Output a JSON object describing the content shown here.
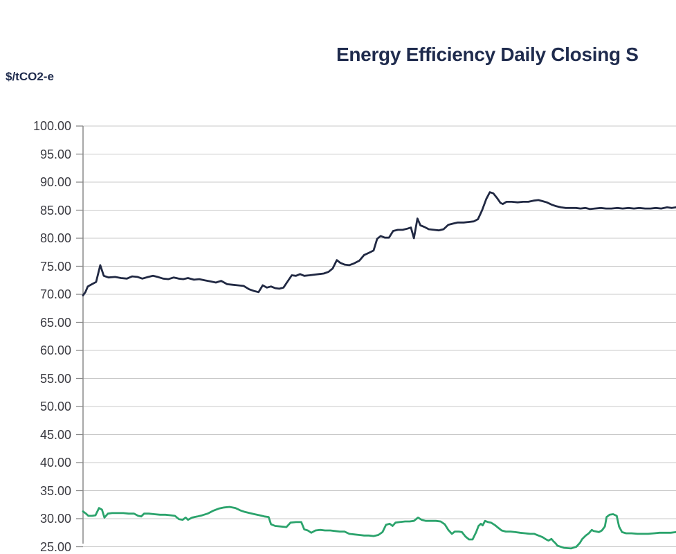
{
  "chart": {
    "title": "Energy Efficiency Daily Closing S",
    "title_color": "#1f2b4d",
    "unit_label": "$/tCO2-e"
  },
  "chart_data": {
    "type": "line",
    "title": "Energy Efficiency Daily Closing S",
    "title_note": "title truncated at right edge of image",
    "ylabel": "$/tCO2-e",
    "ylim": [
      25,
      100
    ],
    "y_tick_step": 5,
    "y_tick_labels": [
      "100.00",
      "95.00",
      "90.00",
      "85.00",
      "80.00",
      "75.00",
      "70.00",
      "65.00",
      "60.00",
      "55.00",
      "50.00",
      "45.00",
      "40.00",
      "35.00",
      "30.00",
      "25.00"
    ],
    "grid": true,
    "x_axis_labels_visible": false,
    "legend_visible": false,
    "colors": {
      "gridline": "#c8c8c8",
      "axis": "#8a8a8a",
      "navy_series": "#212943",
      "green_series": "#2ba36c"
    },
    "series": [
      {
        "name": "navy-series",
        "color": "#212943",
        "points": [
          [
            0.0,
            69.8
          ],
          [
            0.004,
            70.4
          ],
          [
            0.008,
            71.4
          ],
          [
            0.015,
            71.8
          ],
          [
            0.022,
            72.2
          ],
          [
            0.029,
            75.2
          ],
          [
            0.035,
            73.3
          ],
          [
            0.043,
            73.0
          ],
          [
            0.054,
            73.1
          ],
          [
            0.064,
            72.9
          ],
          [
            0.074,
            72.8
          ],
          [
            0.083,
            73.2
          ],
          [
            0.092,
            73.1
          ],
          [
            0.1,
            72.8
          ],
          [
            0.11,
            73.1
          ],
          [
            0.118,
            73.3
          ],
          [
            0.126,
            73.1
          ],
          [
            0.135,
            72.8
          ],
          [
            0.144,
            72.7
          ],
          [
            0.153,
            73.0
          ],
          [
            0.161,
            72.8
          ],
          [
            0.169,
            72.7
          ],
          [
            0.177,
            72.9
          ],
          [
            0.187,
            72.6
          ],
          [
            0.196,
            72.7
          ],
          [
            0.205,
            72.5
          ],
          [
            0.215,
            72.3
          ],
          [
            0.224,
            72.1
          ],
          [
            0.233,
            72.4
          ],
          [
            0.243,
            71.8
          ],
          [
            0.252,
            71.7
          ],
          [
            0.261,
            71.6
          ],
          [
            0.271,
            71.5
          ],
          [
            0.28,
            70.9
          ],
          [
            0.288,
            70.6
          ],
          [
            0.296,
            70.4
          ],
          [
            0.303,
            71.6
          ],
          [
            0.31,
            71.2
          ],
          [
            0.317,
            71.4
          ],
          [
            0.324,
            71.1
          ],
          [
            0.331,
            71.0
          ],
          [
            0.338,
            71.2
          ],
          [
            0.345,
            72.3
          ],
          [
            0.352,
            73.4
          ],
          [
            0.359,
            73.3
          ],
          [
            0.366,
            73.6
          ],
          [
            0.373,
            73.3
          ],
          [
            0.382,
            73.4
          ],
          [
            0.39,
            73.5
          ],
          [
            0.398,
            73.6
          ],
          [
            0.406,
            73.7
          ],
          [
            0.414,
            74.0
          ],
          [
            0.421,
            74.6
          ],
          [
            0.428,
            76.1
          ],
          [
            0.434,
            75.6
          ],
          [
            0.441,
            75.3
          ],
          [
            0.449,
            75.2
          ],
          [
            0.457,
            75.5
          ],
          [
            0.466,
            76.0
          ],
          [
            0.474,
            77.0
          ],
          [
            0.482,
            77.4
          ],
          [
            0.49,
            77.8
          ],
          [
            0.496,
            79.9
          ],
          [
            0.502,
            80.4
          ],
          [
            0.509,
            80.1
          ],
          [
            0.516,
            80.1
          ],
          [
            0.523,
            81.3
          ],
          [
            0.531,
            81.5
          ],
          [
            0.539,
            81.5
          ],
          [
            0.547,
            81.7
          ],
          [
            0.553,
            81.9
          ],
          [
            0.558,
            80.0
          ],
          [
            0.564,
            83.5
          ],
          [
            0.569,
            82.3
          ],
          [
            0.576,
            82.0
          ],
          [
            0.583,
            81.6
          ],
          [
            0.592,
            81.5
          ],
          [
            0.6,
            81.4
          ],
          [
            0.608,
            81.6
          ],
          [
            0.616,
            82.4
          ],
          [
            0.624,
            82.6
          ],
          [
            0.632,
            82.8
          ],
          [
            0.642,
            82.8
          ],
          [
            0.651,
            82.9
          ],
          [
            0.659,
            83.0
          ],
          [
            0.666,
            83.4
          ],
          [
            0.673,
            85.0
          ],
          [
            0.68,
            87.0
          ],
          [
            0.686,
            88.2
          ],
          [
            0.692,
            88.0
          ],
          [
            0.698,
            87.2
          ],
          [
            0.704,
            86.3
          ],
          [
            0.708,
            86.1
          ],
          [
            0.714,
            86.5
          ],
          [
            0.723,
            86.5
          ],
          [
            0.733,
            86.4
          ],
          [
            0.742,
            86.5
          ],
          [
            0.751,
            86.5
          ],
          [
            0.76,
            86.7
          ],
          [
            0.768,
            86.8
          ],
          [
            0.775,
            86.6
          ],
          [
            0.782,
            86.4
          ],
          [
            0.79,
            86.0
          ],
          [
            0.798,
            85.7
          ],
          [
            0.806,
            85.5
          ],
          [
            0.814,
            85.4
          ],
          [
            0.823,
            85.4
          ],
          [
            0.831,
            85.4
          ],
          [
            0.839,
            85.3
          ],
          [
            0.847,
            85.4
          ],
          [
            0.855,
            85.2
          ],
          [
            0.863,
            85.3
          ],
          [
            0.873,
            85.4
          ],
          [
            0.882,
            85.3
          ],
          [
            0.891,
            85.3
          ],
          [
            0.901,
            85.4
          ],
          [
            0.91,
            85.3
          ],
          [
            0.92,
            85.4
          ],
          [
            0.929,
            85.3
          ],
          [
            0.938,
            85.4
          ],
          [
            0.948,
            85.3
          ],
          [
            0.957,
            85.3
          ],
          [
            0.966,
            85.4
          ],
          [
            0.975,
            85.3
          ],
          [
            0.985,
            85.5
          ],
          [
            0.993,
            85.4
          ],
          [
            1.0,
            85.5
          ]
        ]
      },
      {
        "name": "green-series",
        "color": "#2ba36c",
        "points": [
          [
            0.0,
            31.3
          ],
          [
            0.005,
            30.9
          ],
          [
            0.009,
            30.5
          ],
          [
            0.015,
            30.5
          ],
          [
            0.021,
            30.6
          ],
          [
            0.027,
            31.9
          ],
          [
            0.032,
            31.6
          ],
          [
            0.036,
            30.2
          ],
          [
            0.042,
            30.9
          ],
          [
            0.049,
            31.0
          ],
          [
            0.058,
            31.0
          ],
          [
            0.068,
            31.0
          ],
          [
            0.077,
            30.9
          ],
          [
            0.086,
            30.9
          ],
          [
            0.093,
            30.5
          ],
          [
            0.098,
            30.4
          ],
          [
            0.103,
            30.9
          ],
          [
            0.111,
            30.9
          ],
          [
            0.12,
            30.8
          ],
          [
            0.13,
            30.7
          ],
          [
            0.139,
            30.7
          ],
          [
            0.148,
            30.6
          ],
          [
            0.155,
            30.5
          ],
          [
            0.162,
            29.9
          ],
          [
            0.168,
            29.8
          ],
          [
            0.173,
            30.2
          ],
          [
            0.177,
            29.8
          ],
          [
            0.184,
            30.2
          ],
          [
            0.193,
            30.4
          ],
          [
            0.201,
            30.6
          ],
          [
            0.21,
            30.9
          ],
          [
            0.219,
            31.4
          ],
          [
            0.229,
            31.8
          ],
          [
            0.238,
            32.0
          ],
          [
            0.247,
            32.1
          ],
          [
            0.257,
            31.9
          ],
          [
            0.265,
            31.5
          ],
          [
            0.273,
            31.2
          ],
          [
            0.281,
            31.0
          ],
          [
            0.289,
            30.8
          ],
          [
            0.298,
            30.6
          ],
          [
            0.306,
            30.4
          ],
          [
            0.313,
            30.3
          ],
          [
            0.317,
            29.0
          ],
          [
            0.324,
            28.7
          ],
          [
            0.334,
            28.6
          ],
          [
            0.343,
            28.5
          ],
          [
            0.35,
            29.3
          ],
          [
            0.359,
            29.4
          ],
          [
            0.368,
            29.4
          ],
          [
            0.373,
            28.1
          ],
          [
            0.379,
            27.9
          ],
          [
            0.385,
            27.5
          ],
          [
            0.392,
            27.9
          ],
          [
            0.4,
            28.0
          ],
          [
            0.408,
            27.9
          ],
          [
            0.417,
            27.9
          ],
          [
            0.425,
            27.8
          ],
          [
            0.433,
            27.7
          ],
          [
            0.441,
            27.7
          ],
          [
            0.449,
            27.3
          ],
          [
            0.457,
            27.2
          ],
          [
            0.466,
            27.1
          ],
          [
            0.474,
            27.0
          ],
          [
            0.482,
            27.0
          ],
          [
            0.49,
            26.9
          ],
          [
            0.498,
            27.1
          ],
          [
            0.505,
            27.6
          ],
          [
            0.511,
            28.9
          ],
          [
            0.517,
            29.1
          ],
          [
            0.522,
            28.7
          ],
          [
            0.527,
            29.3
          ],
          [
            0.534,
            29.4
          ],
          [
            0.543,
            29.5
          ],
          [
            0.551,
            29.5
          ],
          [
            0.558,
            29.6
          ],
          [
            0.565,
            30.2
          ],
          [
            0.571,
            29.8
          ],
          [
            0.578,
            29.6
          ],
          [
            0.586,
            29.6
          ],
          [
            0.595,
            29.6
          ],
          [
            0.603,
            29.5
          ],
          [
            0.61,
            29.0
          ],
          [
            0.616,
            28.0
          ],
          [
            0.622,
            27.3
          ],
          [
            0.627,
            27.7
          ],
          [
            0.634,
            27.7
          ],
          [
            0.639,
            27.6
          ],
          [
            0.645,
            26.8
          ],
          [
            0.651,
            26.3
          ],
          [
            0.657,
            26.3
          ],
          [
            0.663,
            27.6
          ],
          [
            0.667,
            28.7
          ],
          [
            0.671,
            29.1
          ],
          [
            0.674,
            28.8
          ],
          [
            0.678,
            29.6
          ],
          [
            0.683,
            29.4
          ],
          [
            0.688,
            29.3
          ],
          [
            0.694,
            28.9
          ],
          [
            0.7,
            28.4
          ],
          [
            0.706,
            27.9
          ],
          [
            0.713,
            27.7
          ],
          [
            0.721,
            27.7
          ],
          [
            0.729,
            27.6
          ],
          [
            0.737,
            27.5
          ],
          [
            0.746,
            27.4
          ],
          [
            0.754,
            27.3
          ],
          [
            0.761,
            27.3
          ],
          [
            0.768,
            27.0
          ],
          [
            0.775,
            26.7
          ],
          [
            0.781,
            26.3
          ],
          [
            0.785,
            26.1
          ],
          [
            0.79,
            26.4
          ],
          [
            0.793,
            26.0
          ],
          [
            0.797,
            25.6
          ],
          [
            0.8,
            25.2
          ],
          [
            0.811,
            24.8
          ],
          [
            0.823,
            24.7
          ],
          [
            0.832,
            25.0
          ],
          [
            0.838,
            25.7
          ],
          [
            0.842,
            26.4
          ],
          [
            0.848,
            27.0
          ],
          [
            0.853,
            27.4
          ],
          [
            0.858,
            28.0
          ],
          [
            0.861,
            27.8
          ],
          [
            0.866,
            27.7
          ],
          [
            0.87,
            27.6
          ],
          [
            0.875,
            27.9
          ],
          [
            0.88,
            28.6
          ],
          [
            0.883,
            30.3
          ],
          [
            0.888,
            30.7
          ],
          [
            0.894,
            30.8
          ],
          [
            0.9,
            30.5
          ],
          [
            0.904,
            28.6
          ],
          [
            0.909,
            27.6
          ],
          [
            0.916,
            27.4
          ],
          [
            0.925,
            27.4
          ],
          [
            0.935,
            27.3
          ],
          [
            0.944,
            27.3
          ],
          [
            0.953,
            27.3
          ],
          [
            0.963,
            27.4
          ],
          [
            0.972,
            27.5
          ],
          [
            0.981,
            27.5
          ],
          [
            0.991,
            27.5
          ],
          [
            1.0,
            27.6
          ]
        ]
      }
    ]
  }
}
